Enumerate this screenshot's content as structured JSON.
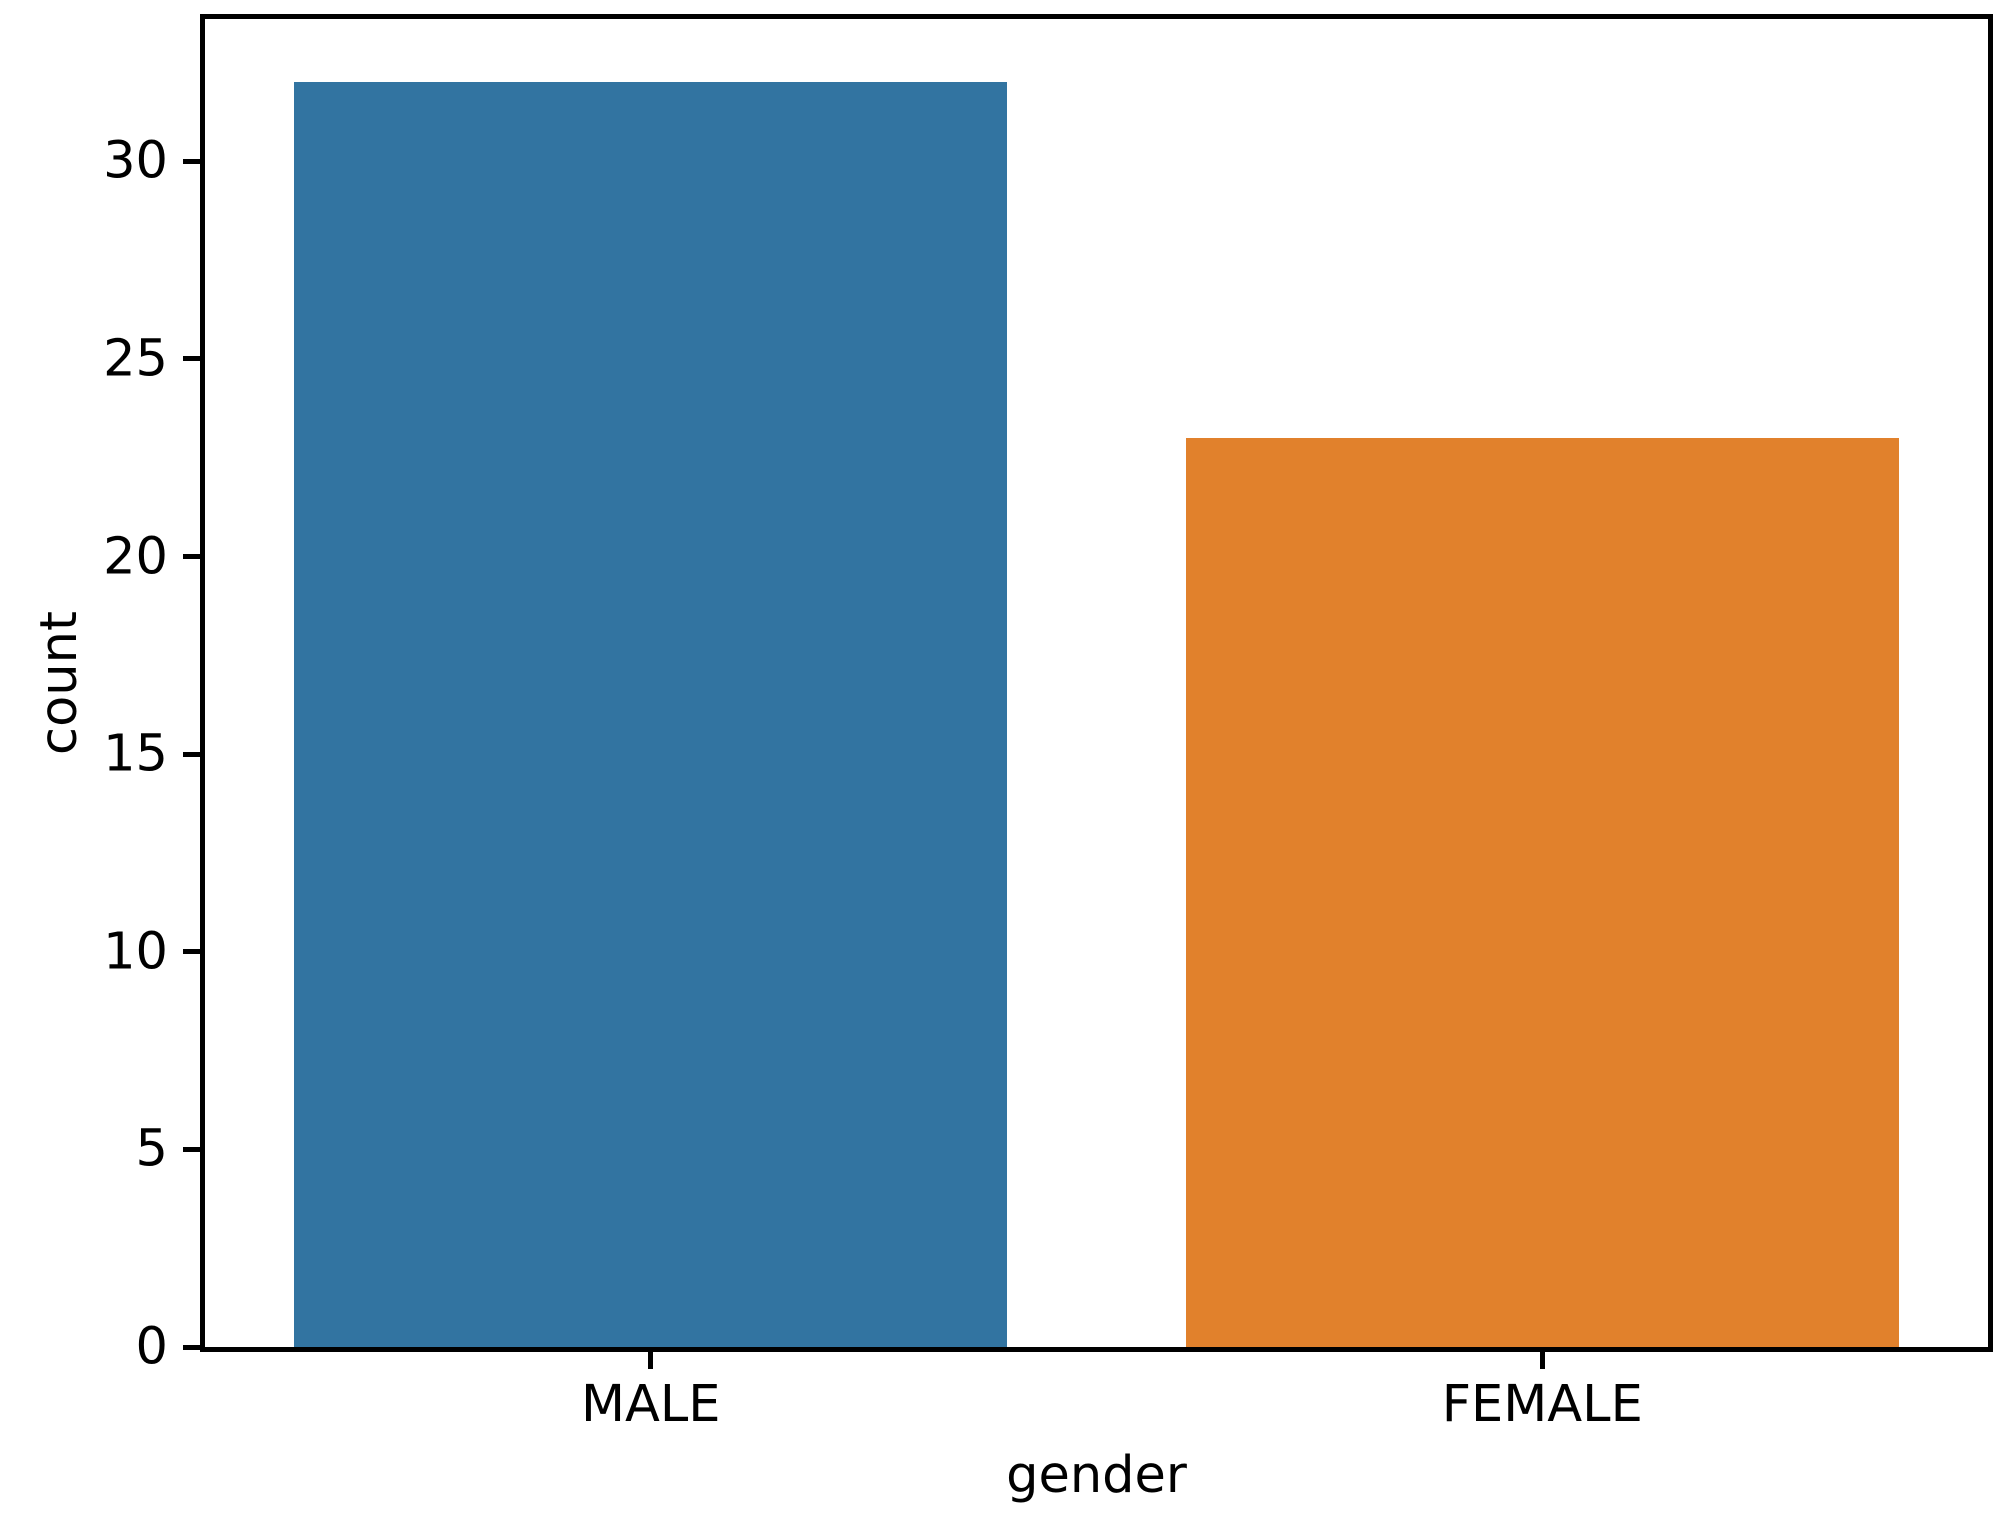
{
  "chart_data": {
    "type": "bar",
    "title": "",
    "xlabel": "gender",
    "ylabel": "count",
    "categories": [
      "MALE",
      "FEMALE"
    ],
    "values": [
      32,
      23
    ],
    "series": [
      {
        "name": "count",
        "values": [
          32,
          23
        ]
      }
    ],
    "bar_colors": [
      "#3274a1",
      "#e1812c"
    ],
    "bar_width_fraction": 0.8,
    "yticks": [
      0,
      5,
      10,
      15,
      20,
      25,
      30
    ],
    "ylim": [
      0,
      33.6
    ],
    "grid": false,
    "legend": false,
    "legend_position": "none",
    "axis_color": "#000000",
    "text_color": "#000000",
    "background_color": "#ffffff"
  }
}
